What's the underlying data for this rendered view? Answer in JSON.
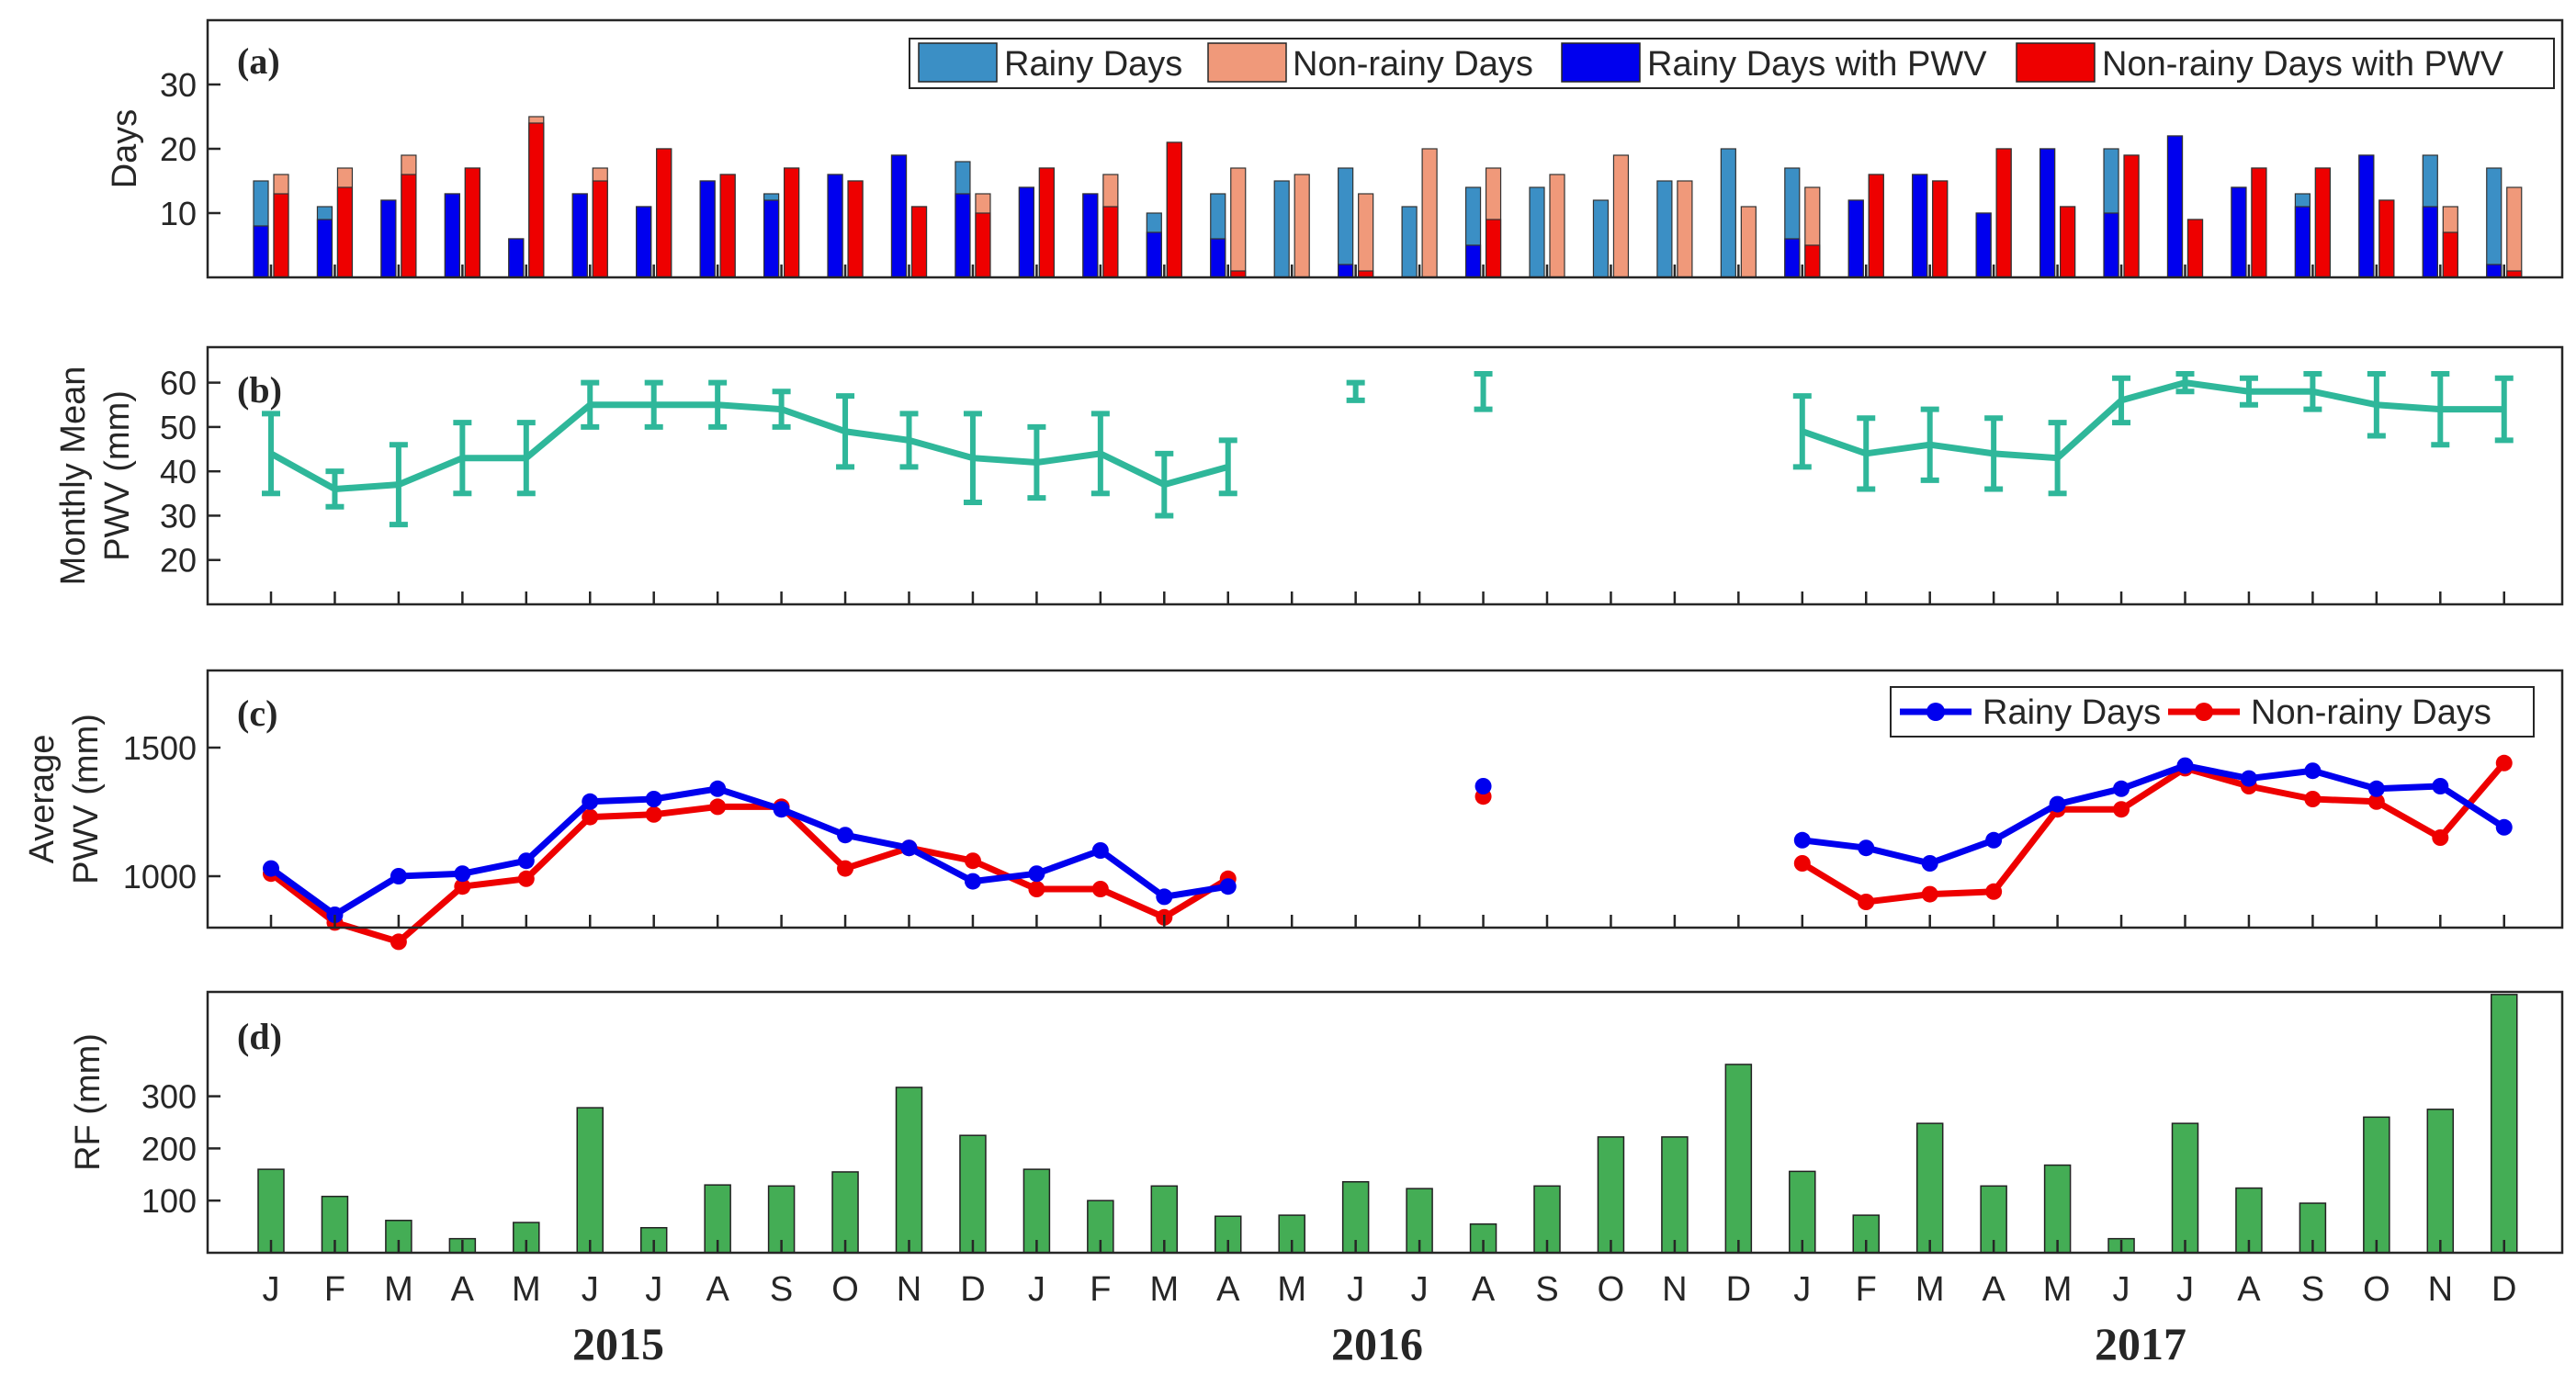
{
  "months": [
    "J",
    "F",
    "M",
    "A",
    "M",
    "J",
    "J",
    "A",
    "S",
    "O",
    "N",
    "D",
    "J",
    "F",
    "M",
    "A",
    "M",
    "J",
    "J",
    "A",
    "S",
    "O",
    "N",
    "D",
    "J",
    "F",
    "M",
    "A",
    "M",
    "J",
    "J",
    "A",
    "S",
    "O",
    "N",
    "D"
  ],
  "years": [
    "2015",
    "2016",
    "2017"
  ],
  "colors": {
    "rainy": "#3b8fc5",
    "nonrainy": "#f0997a",
    "rainy_pwv": "#0000ee",
    "nonrainy_pwv": "#ee0000",
    "pwv_line": "#2fb79a",
    "rf_bar": "#44ad55",
    "axis": "#262626"
  },
  "chart_data": [
    {
      "panel": "(a)",
      "type": "bar",
      "ylabel": "Days",
      "ylim": [
        0,
        40
      ],
      "yticks": [
        10,
        20,
        30
      ],
      "legend": {
        "placement": "top-right",
        "entries": [
          "Rainy Days",
          "Non-rainy Days",
          "Rainy Days with PWV",
          "Non-rainy Days with PWV"
        ]
      },
      "series": [
        {
          "name": "Rainy Days",
          "values": [
            15,
            11,
            12,
            13,
            6,
            13,
            11,
            15,
            13,
            16,
            19,
            18,
            14,
            13,
            10,
            13,
            15,
            17,
            11,
            14,
            14,
            12,
            15,
            20,
            17,
            12,
            16,
            10,
            20,
            20,
            22,
            14,
            13,
            19,
            19,
            17
          ]
        },
        {
          "name": "Non-rainy Days",
          "values": [
            16,
            17,
            19,
            17,
            25,
            17,
            20,
            16,
            17,
            15,
            11,
            13,
            17,
            16,
            21,
            17,
            16,
            13,
            20,
            17,
            16,
            19,
            15,
            11,
            14,
            16,
            15,
            20,
            11,
            19,
            9,
            17,
            17,
            12,
            11,
            14
          ]
        },
        {
          "name": "Rainy Days with PWV",
          "values": [
            8,
            9,
            12,
            13,
            6,
            13,
            11,
            15,
            12,
            16,
            19,
            13,
            14,
            13,
            7,
            6,
            0,
            2,
            0,
            5,
            0,
            0,
            0,
            0,
            6,
            12,
            16,
            10,
            20,
            10,
            22,
            14,
            11,
            19,
            11,
            2
          ]
        },
        {
          "name": "Non-rainy Days with PWV",
          "values": [
            13,
            14,
            16,
            17,
            24,
            15,
            20,
            16,
            17,
            15,
            11,
            10,
            17,
            11,
            21,
            1,
            0,
            1,
            0,
            9,
            0,
            0,
            0,
            0,
            5,
            16,
            15,
            20,
            11,
            19,
            9,
            17,
            17,
            12,
            7,
            1
          ]
        }
      ]
    },
    {
      "panel": "(b)",
      "type": "line",
      "ylabel": [
        "Monthly Mean",
        "PWV (mm)"
      ],
      "ylim": [
        10,
        68
      ],
      "yticks": [
        20,
        30,
        40,
        50,
        60
      ],
      "series": [
        {
          "name": "Monthly Mean PWV",
          "values": [
            44,
            36,
            37,
            43,
            43,
            55,
            55,
            55,
            54,
            49,
            47,
            43,
            42,
            44,
            37,
            41,
            null,
            58,
            null,
            58,
            null,
            null,
            null,
            null,
            49,
            44,
            46,
            44,
            43,
            56,
            60,
            58,
            58,
            55,
            54,
            54
          ],
          "error": [
            9,
            4,
            9,
            8,
            8,
            5,
            5,
            5,
            4,
            8,
            6,
            10,
            8,
            9,
            7,
            6,
            null,
            2,
            null,
            4,
            null,
            null,
            null,
            null,
            8,
            8,
            8,
            8,
            8,
            5,
            2,
            3,
            4,
            7,
            8,
            7
          ]
        }
      ]
    },
    {
      "panel": "(c)",
      "type": "line",
      "ylabel": [
        "Average",
        "PWV (mm)"
      ],
      "ylim": [
        800,
        1800
      ],
      "yticks": [
        1000,
        1500
      ],
      "legend": {
        "placement": "top-right",
        "entries": [
          "Rainy Days",
          "Non-rainy Days"
        ]
      },
      "series": [
        {
          "name": "Rainy Days",
          "values": [
            1030,
            850,
            1000,
            1010,
            1060,
            1290,
            1300,
            1340,
            1260,
            1160,
            1110,
            980,
            1010,
            1100,
            920,
            960,
            null,
            null,
            null,
            1350,
            null,
            null,
            null,
            null,
            1140,
            1110,
            1050,
            1140,
            1280,
            1340,
            1430,
            1380,
            1410,
            1340,
            1350,
            1190
          ]
        },
        {
          "name": "Non-rainy Days",
          "values": [
            1010,
            820,
            745,
            960,
            990,
            1230,
            1240,
            1270,
            1270,
            1030,
            1110,
            1060,
            950,
            950,
            840,
            990,
            null,
            null,
            null,
            1310,
            null,
            null,
            null,
            null,
            1050,
            900,
            930,
            940,
            1260,
            1260,
            1420,
            1350,
            1300,
            1290,
            1150,
            1440
          ]
        }
      ]
    },
    {
      "panel": "(d)",
      "type": "bar",
      "ylabel": "RF (mm)",
      "ylim": [
        0,
        500
      ],
      "yticks": [
        100,
        200,
        300
      ],
      "series": [
        {
          "name": "RF",
          "values": [
            160,
            108,
            62,
            27,
            58,
            278,
            48,
            130,
            128,
            155,
            317,
            225,
            160,
            100,
            128,
            70,
            72,
            136,
            123,
            55,
            128,
            222,
            222,
            361,
            156,
            72,
            248,
            128,
            168,
            27,
            248,
            124,
            95,
            260,
            275,
            495
          ]
        }
      ]
    }
  ]
}
